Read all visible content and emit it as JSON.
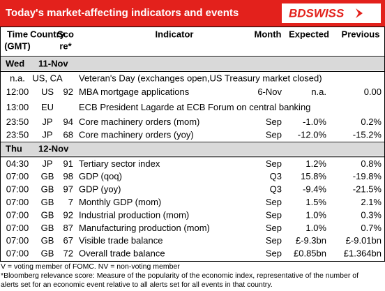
{
  "header": {
    "title": "Today's market-affecting indicators and events",
    "logo": "BDSWISS"
  },
  "columns": [
    [
      "Time",
      "(GMT)"
    ],
    [
      "Country"
    ],
    [
      "Sco",
      "re*"
    ],
    [
      "Indicator"
    ],
    [
      "Month"
    ],
    [
      "Expected"
    ],
    [
      "Previous"
    ]
  ],
  "days": [
    {
      "day": "Wed",
      "date": "11-Nov",
      "rows": [
        {
          "time": "n.a.",
          "country": "US, CA",
          "indicator": "Veteran's Day (exchanges open,US Treasury market closed)"
        },
        {
          "time": "12:00",
          "country": "US",
          "score": "92",
          "indicator": "MBA mortgage applications",
          "month": "6-Nov",
          "expected": "n.a.",
          "previous": "0.00"
        },
        {
          "time": "13:00",
          "country": "EU",
          "indicator": "ECB President Lagarde at ECB Forum on central banking"
        },
        {
          "time": "23:50",
          "country": "JP",
          "score": "94",
          "indicator": "Core machinery orders (mom)",
          "month": "Sep",
          "expected": "-1.0%",
          "previous": "0.2%"
        },
        {
          "time": "23:50",
          "country": "JP",
          "score": "68",
          "indicator": "Core machinery orders (yoy)",
          "month": "Sep",
          "expected": "-12.0%",
          "previous": "-15.2%"
        }
      ]
    },
    {
      "day": "Thu",
      "date": "12-Nov",
      "rows": [
        {
          "time": "04:30",
          "country": "JP",
          "score": "91",
          "indicator": "Tertiary sector index",
          "month": "Sep",
          "expected": "1.2%",
          "previous": "0.8%"
        },
        {
          "time": "07:00",
          "country": "GB",
          "score": "98",
          "indicator": "GDP (qoq)",
          "month": "Q3",
          "expected": "15.8%",
          "previous": "-19.8%"
        },
        {
          "time": "07:00",
          "country": "GB",
          "score": "97",
          "indicator": "GDP (yoy)",
          "month": "Q3",
          "expected": "-9.4%",
          "previous": "-21.5%"
        },
        {
          "time": "07:00",
          "country": "GB",
          "score": "7",
          "indicator": "Monthly GDP (mom)",
          "month": "Sep",
          "expected": "1.5%",
          "previous": "2.1%"
        },
        {
          "time": "07:00",
          "country": "GB",
          "score": "92",
          "indicator": "Industrial production (mom)",
          "month": "Sep",
          "expected": "1.0%",
          "previous": "0.3%"
        },
        {
          "time": "07:00",
          "country": "GB",
          "score": "87",
          "indicator": "Manufacturing production (mom)",
          "month": "Sep",
          "expected": "1.0%",
          "previous": "0.7%"
        },
        {
          "time": "07:00",
          "country": "GB",
          "score": "67",
          "indicator": "Visible trade balance",
          "month": "Sep",
          "expected": "£-9.3bn",
          "previous": "£-9.01bn"
        },
        {
          "time": "07:00",
          "country": "GB",
          "score": "72",
          "indicator": "Overall trade balance",
          "month": "Sep",
          "expected": "£0.85bn",
          "previous": "£1.364bn"
        }
      ]
    }
  ],
  "footnotes": [
    "V = voting member of FOMC. NV = non-voting member",
    "*Bloomberg relevance score:  Measure of the popularity of the economic index, representative of the number of",
    "alerts set for an economic event relative to all alerts set for all events in that country."
  ]
}
